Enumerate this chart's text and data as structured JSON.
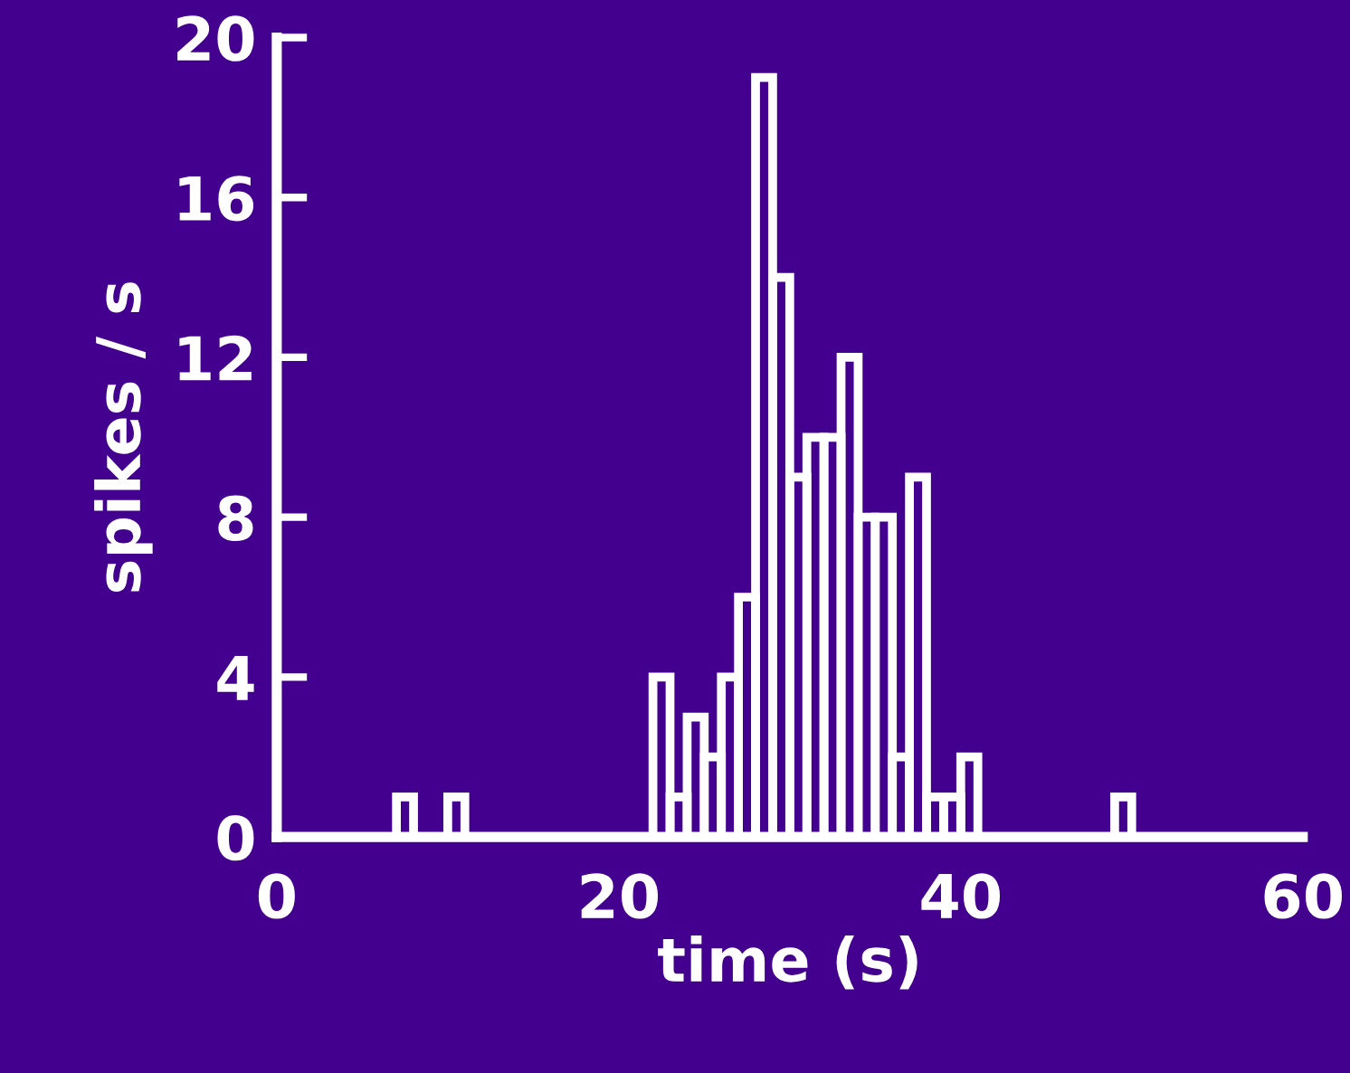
{
  "chart_data": {
    "type": "histogram",
    "xlabel": "time (s)",
    "ylabel": "spikes / s",
    "color": "#ffffff",
    "bins": [
      0,
      1,
      2,
      3,
      4,
      5,
      6,
      7,
      8,
      9,
      10,
      11,
      12,
      13,
      14,
      15,
      16,
      17,
      18,
      19,
      20,
      21,
      22,
      23,
      24,
      25,
      26,
      27,
      28,
      29,
      30,
      31,
      32,
      33,
      34,
      35,
      36,
      37,
      38,
      39,
      40,
      41,
      42,
      43,
      44,
      45,
      46,
      47,
      48,
      49,
      50,
      51,
      52,
      53,
      54,
      55,
      56,
      57,
      58,
      59,
      60
    ],
    "values": [
      0,
      0,
      0,
      0,
      0,
      0,
      0,
      1,
      0,
      0,
      1,
      0,
      0,
      0,
      0,
      0,
      0,
      0,
      0,
      0,
      0,
      0,
      4,
      1,
      3,
      2,
      4,
      6,
      19,
      14,
      9,
      10,
      10,
      12,
      8,
      8,
      2,
      9,
      1,
      1,
      2,
      0,
      0,
      0,
      0,
      0,
      0,
      0,
      0,
      1,
      0,
      0,
      0,
      0,
      0,
      0,
      0,
      0,
      0,
      0
    ],
    "xlim": [
      0,
      60
    ],
    "ylim": [
      0,
      20
    ],
    "xticks": [
      0,
      20,
      40,
      60
    ],
    "yticks": [
      0,
      4,
      8,
      12,
      16,
      20
    ],
    "grid": false
  }
}
